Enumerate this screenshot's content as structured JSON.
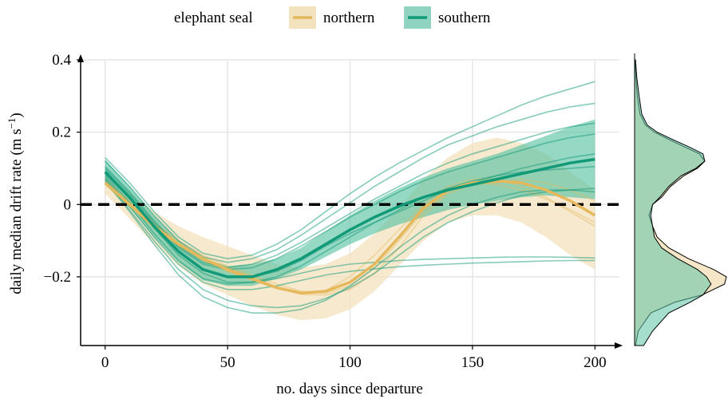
{
  "chart_data": {
    "type": "line",
    "xlabel": "no. days since departure",
    "ylabel": "daily median drift rate (m s",
    "ylabel_unit_exp": "−1",
    "ylabel_close": ")",
    "xlim": [
      -10,
      210
    ],
    "ylim": [
      -0.39,
      0.4
    ],
    "x_ticks": [
      0,
      50,
      100,
      150,
      200
    ],
    "x_tick_labels": [
      "0",
      "50",
      "100",
      "150",
      "200"
    ],
    "y_ticks": [
      -0.2,
      0,
      0.2,
      0.4
    ],
    "y_tick_labels": [
      "−0.2",
      "0",
      "0.2",
      "0.4"
    ],
    "grid": true,
    "reference_line": {
      "y": 0,
      "style": "dashed"
    },
    "legend": {
      "title": "elephant seal",
      "position": "top",
      "entries": [
        {
          "label": "northern",
          "line_color": "#E5B85C",
          "fill_color": "#F3E2BE"
        },
        {
          "label": "southern",
          "line_color": "#109A77",
          "fill_color": "#8FD3C0"
        }
      ]
    },
    "series": [
      {
        "name": "northern",
        "color": "#E5B85C",
        "band_color": "#F3E2BE",
        "mean": {
          "x": [
            0,
            10,
            20,
            30,
            40,
            50,
            60,
            70,
            80,
            90,
            100,
            110,
            120,
            130,
            140,
            150,
            160,
            170,
            180,
            190,
            200
          ],
          "y": [
            0.06,
            0.0,
            -0.06,
            -0.11,
            -0.15,
            -0.18,
            -0.205,
            -0.23,
            -0.245,
            -0.24,
            -0.215,
            -0.165,
            -0.09,
            -0.01,
            0.04,
            0.06,
            0.065,
            0.06,
            0.04,
            0.01,
            -0.03
          ]
        },
        "band_lower": [
          0.03,
          -0.04,
          -0.11,
          -0.17,
          -0.22,
          -0.25,
          -0.28,
          -0.305,
          -0.32,
          -0.315,
          -0.29,
          -0.24,
          -0.17,
          -0.1,
          -0.05,
          -0.03,
          -0.03,
          -0.05,
          -0.09,
          -0.14,
          -0.18
        ],
        "band_upper": [
          0.09,
          0.035,
          -0.02,
          -0.06,
          -0.09,
          -0.115,
          -0.14,
          -0.165,
          -0.175,
          -0.165,
          -0.135,
          -0.08,
          -0.01,
          0.07,
          0.13,
          0.17,
          0.185,
          0.17,
          0.14,
          0.09,
          0.04
        ],
        "individuals": [
          [
            0.055,
            -0.005,
            -0.065,
            -0.115,
            -0.155,
            -0.185,
            -0.21,
            -0.232,
            -0.245,
            -0.238,
            -0.2,
            -0.14,
            -0.07,
            -0.0,
            0.05,
            0.07,
            0.07,
            0.05,
            0.02,
            -0.02,
            -0.06
          ],
          [
            0.065,
            0.005,
            -0.055,
            -0.105,
            -0.145,
            -0.175,
            -0.2,
            -0.228,
            -0.248,
            -0.25,
            -0.235,
            -0.19,
            -0.12,
            -0.03,
            0.03,
            0.055,
            0.06,
            0.07,
            0.06,
            0.04,
            0.01
          ],
          [
            0.07,
            0.01,
            -0.05,
            -0.1,
            -0.14,
            -0.17,
            -0.195,
            -0.22,
            -0.24,
            -0.245,
            -0.225,
            -0.175,
            -0.1,
            -0.02,
            0.035,
            0.06,
            0.055,
            0.04,
            0.015,
            -0.015,
            -0.05
          ]
        ]
      },
      {
        "name": "southern",
        "color": "#109A77",
        "band_color": "#5CC3A4",
        "mean": {
          "x": [
            0,
            10,
            20,
            30,
            40,
            50,
            60,
            70,
            80,
            90,
            100,
            110,
            120,
            130,
            140,
            150,
            160,
            170,
            180,
            190,
            200
          ],
          "y": [
            0.09,
            0.02,
            -0.06,
            -0.13,
            -0.18,
            -0.2,
            -0.2,
            -0.18,
            -0.15,
            -0.11,
            -0.07,
            -0.035,
            -0.005,
            0.02,
            0.04,
            0.055,
            0.07,
            0.085,
            0.1,
            0.115,
            0.125
          ]
        },
        "band_lower": [
          0.055,
          -0.01,
          -0.09,
          -0.16,
          -0.21,
          -0.225,
          -0.225,
          -0.205,
          -0.18,
          -0.145,
          -0.11,
          -0.08,
          -0.055,
          -0.035,
          -0.015,
          0.0,
          0.01,
          0.02,
          0.025,
          0.02,
          0.015
        ],
        "band_upper": [
          0.125,
          0.05,
          -0.03,
          -0.1,
          -0.15,
          -0.17,
          -0.165,
          -0.15,
          -0.12,
          -0.075,
          -0.03,
          0.01,
          0.045,
          0.075,
          0.1,
          0.12,
          0.14,
          0.165,
          0.19,
          0.215,
          0.235
        ],
        "individuals": [
          [
            0.13,
            0.06,
            -0.02,
            -0.09,
            -0.135,
            -0.15,
            -0.14,
            -0.11,
            -0.07,
            -0.02,
            0.03,
            0.075,
            0.115,
            0.15,
            0.185,
            0.215,
            0.245,
            0.275,
            0.3,
            0.32,
            0.34
          ],
          [
            0.12,
            0.05,
            -0.03,
            -0.1,
            -0.145,
            -0.16,
            -0.15,
            -0.125,
            -0.085,
            -0.04,
            0.005,
            0.05,
            0.09,
            0.13,
            0.165,
            0.19,
            0.215,
            0.235,
            0.255,
            0.27,
            0.28
          ],
          [
            0.105,
            0.035,
            -0.045,
            -0.115,
            -0.16,
            -0.175,
            -0.165,
            -0.14,
            -0.105,
            -0.065,
            -0.025,
            0.015,
            0.05,
            0.085,
            0.115,
            0.14,
            0.16,
            0.18,
            0.2,
            0.215,
            0.225
          ],
          [
            0.1,
            0.03,
            -0.05,
            -0.12,
            -0.165,
            -0.18,
            -0.175,
            -0.15,
            -0.115,
            -0.075,
            -0.035,
            0.0,
            0.035,
            0.065,
            0.09,
            0.11,
            0.13,
            0.15,
            0.17,
            0.185,
            0.195
          ],
          [
            0.095,
            0.02,
            -0.06,
            -0.13,
            -0.18,
            -0.2,
            -0.2,
            -0.185,
            -0.155,
            -0.115,
            -0.08,
            -0.05,
            -0.02,
            0.01,
            0.04,
            0.06,
            0.08,
            0.1,
            0.115,
            0.13,
            0.14
          ],
          [
            0.085,
            0.015,
            -0.065,
            -0.14,
            -0.19,
            -0.215,
            -0.215,
            -0.2,
            -0.17,
            -0.13,
            -0.09,
            -0.05,
            -0.015,
            0.02,
            0.045,
            0.065,
            0.08,
            0.09,
            0.095,
            0.1,
            0.105
          ],
          [
            0.08,
            0.005,
            -0.08,
            -0.155,
            -0.205,
            -0.22,
            -0.215,
            -0.205,
            -0.19,
            -0.175,
            -0.165,
            -0.16,
            -0.155,
            -0.152,
            -0.15,
            -0.148,
            -0.146,
            -0.145,
            -0.145,
            -0.146,
            -0.148
          ],
          [
            0.075,
            -0.005,
            -0.09,
            -0.165,
            -0.215,
            -0.235,
            -0.235,
            -0.225,
            -0.21,
            -0.195,
            -0.185,
            -0.178,
            -0.172,
            -0.168,
            -0.165,
            -0.162,
            -0.16,
            -0.158,
            -0.156,
            -0.155,
            -0.155
          ],
          [
            0.07,
            -0.015,
            -0.1,
            -0.18,
            -0.235,
            -0.265,
            -0.28,
            -0.285,
            -0.28,
            -0.26,
            -0.23,
            -0.19,
            -0.14,
            -0.09,
            -0.05,
            -0.02,
            0.005,
            0.025,
            0.035,
            0.04,
            0.045
          ],
          [
            0.065,
            -0.02,
            -0.11,
            -0.195,
            -0.255,
            -0.285,
            -0.3,
            -0.3,
            -0.29,
            -0.265,
            -0.225,
            -0.175,
            -0.12,
            -0.07,
            -0.03,
            0.0,
            0.02,
            0.035,
            0.04,
            0.04,
            0.035
          ]
        ]
      }
    ],
    "density_panel": {
      "y_values": [
        -0.39,
        -0.35,
        -0.3,
        -0.27,
        -0.25,
        -0.22,
        -0.2,
        -0.18,
        -0.15,
        -0.12,
        -0.09,
        -0.06,
        -0.03,
        0.0,
        0.02,
        0.05,
        0.08,
        0.1,
        0.12,
        0.14,
        0.16,
        0.18,
        0.2,
        0.22,
        0.25,
        0.3,
        0.35,
        0.4
      ],
      "northern": [
        0.01,
        0.04,
        0.18,
        0.45,
        0.75,
        1.0,
        1.02,
        0.88,
        0.6,
        0.38,
        0.25,
        0.2,
        0.16,
        0.2,
        0.3,
        0.4,
        0.55,
        0.7,
        0.78,
        0.72,
        0.55,
        0.38,
        0.22,
        0.12,
        0.06,
        0.03,
        0.015,
        0.005
      ],
      "southern": [
        0.1,
        0.2,
        0.38,
        0.62,
        0.76,
        0.85,
        0.8,
        0.7,
        0.48,
        0.3,
        0.22,
        0.2,
        0.18,
        0.2,
        0.28,
        0.38,
        0.52,
        0.68,
        0.78,
        0.76,
        0.6,
        0.42,
        0.25,
        0.14,
        0.08,
        0.05,
        0.025,
        0.01
      ]
    }
  }
}
